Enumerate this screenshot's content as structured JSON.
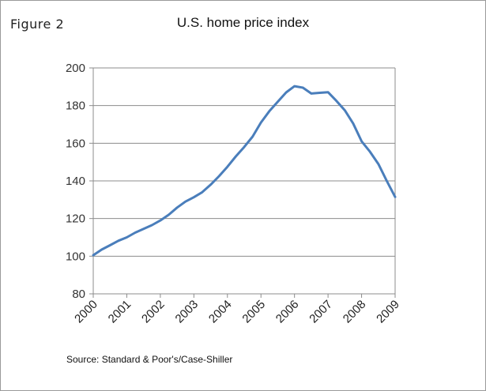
{
  "figure_label": "Figure 2",
  "source": "Source: Standard & Poor's/Case-Shiller",
  "chart_data": {
    "type": "line",
    "title": "U.S. home price index",
    "xlabel": "",
    "ylabel": "",
    "xlim": [
      2000,
      2009
    ],
    "ylim": [
      80,
      200
    ],
    "yticks": [
      80,
      100,
      120,
      140,
      160,
      180,
      200
    ],
    "xticks": [
      "2000",
      "2001",
      "2002",
      "2003",
      "2004",
      "2005",
      "2006",
      "2007",
      "2008",
      "2009"
    ],
    "grid": "horizontal",
    "series": [
      {
        "name": "",
        "color": "#4a7ebb",
        "x": [
          2000.0,
          2000.25,
          2000.5,
          2000.75,
          2001.0,
          2001.25,
          2001.5,
          2001.75,
          2002.0,
          2002.25,
          2002.5,
          2002.75,
          2003.0,
          2003.25,
          2003.5,
          2003.75,
          2004.0,
          2004.25,
          2004.5,
          2004.75,
          2005.0,
          2005.25,
          2005.5,
          2005.75,
          2006.0,
          2006.25,
          2006.5,
          2006.75,
          2007.0,
          2007.25,
          2007.5,
          2007.75,
          2008.0,
          2008.25,
          2008.5,
          2008.75,
          2009.0
        ],
        "y": [
          100.5,
          103.5,
          105.8,
          108.2,
          110.0,
          112.5,
          114.5,
          116.5,
          119.0,
          122.0,
          125.8,
          129.0,
          131.3,
          134.0,
          138.0,
          142.5,
          147.5,
          153.0,
          158.0,
          163.5,
          171.0,
          177.0,
          182.0,
          187.0,
          190.3,
          189.5,
          186.4,
          186.8,
          187.1,
          182.5,
          177.5,
          170.5,
          161.0,
          155.5,
          149.0,
          140.0,
          131.5
        ]
      }
    ]
  }
}
